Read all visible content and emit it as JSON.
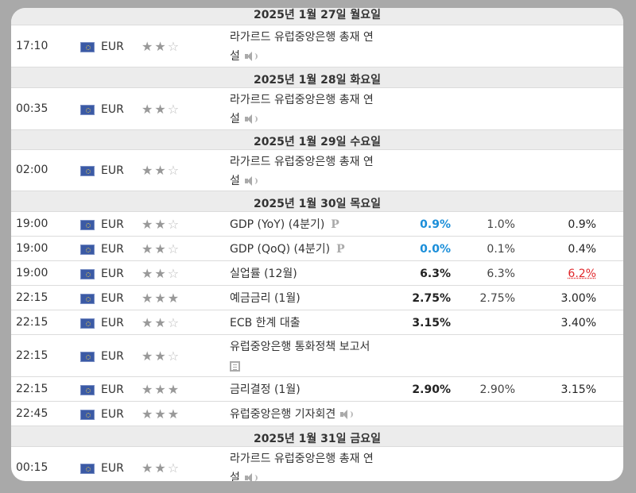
{
  "rows": [
    {
      "type": "day",
      "label": "2025년 1월 27일 월요일"
    },
    {
      "type": "event",
      "time": "17:10",
      "currency": "EUR",
      "stars": 2,
      "event": "라가르드 유럽중앙은행 총재 연",
      "event2": "설",
      "icon": "speaker-icon"
    },
    {
      "type": "day",
      "label": "2025년 1월 28일 화요일"
    },
    {
      "type": "event",
      "time": "00:35",
      "currency": "EUR",
      "stars": 2,
      "event": "라가르드 유럽중앙은행 총재 연",
      "event2": "설",
      "icon": "speaker-icon"
    },
    {
      "type": "day",
      "label": "2025년 1월 29일 수요일"
    },
    {
      "type": "event",
      "time": "02:00",
      "currency": "EUR",
      "stars": 2,
      "event": "라가르드 유럽중앙은행 총재 연",
      "event2": "설",
      "icon": "speaker-icon"
    },
    {
      "type": "day",
      "label": "2025년 1월 30일 목요일"
    },
    {
      "type": "event",
      "time": "19:00",
      "currency": "EUR",
      "stars": 2,
      "event": "GDP (YoY) (4분기)",
      "icon": "preliminary-icon",
      "actual": "0.9%",
      "actual_color": "blue",
      "forecast": "1.0%",
      "previous": "0.9%"
    },
    {
      "type": "event",
      "time": "19:00",
      "currency": "EUR",
      "stars": 2,
      "event": "GDP (QoQ) (4분기)",
      "icon": "preliminary-icon",
      "actual": "0.0%",
      "actual_color": "blue",
      "forecast": "0.1%",
      "previous": "0.4%"
    },
    {
      "type": "event",
      "time": "19:00",
      "currency": "EUR",
      "stars": 2,
      "event": "실업률 (12월)",
      "actual": "6.3%",
      "forecast": "6.3%",
      "previous": "6.2%",
      "previous_color": "red"
    },
    {
      "type": "event",
      "time": "22:15",
      "currency": "EUR",
      "stars": 3,
      "event": "예금금리 (1월)",
      "actual": "2.75%",
      "forecast": "2.75%",
      "previous": "3.00%"
    },
    {
      "type": "event",
      "time": "22:15",
      "currency": "EUR",
      "stars": 2,
      "event": "ECB 한계 대출",
      "actual": "3.15%",
      "forecast": "",
      "previous": "3.40%"
    },
    {
      "type": "event",
      "time": "22:15",
      "currency": "EUR",
      "stars": 2,
      "event": "유럽중앙은행 통화정책 보고서",
      "icon2": "report-icon"
    },
    {
      "type": "event",
      "time": "22:15",
      "currency": "EUR",
      "stars": 3,
      "event": "금리결정 (1월)",
      "actual": "2.90%",
      "forecast": "2.90%",
      "previous": "3.15%"
    },
    {
      "type": "event",
      "time": "22:45",
      "currency": "EUR",
      "stars": 3,
      "event": "유럽중앙은행 기자회견",
      "icon": "speaker-icon"
    },
    {
      "type": "day",
      "label": "2025년 1월 31일 금요일"
    },
    {
      "type": "event",
      "time": "00:15",
      "currency": "EUR",
      "stars": 2,
      "event": "라가르드 유럽중앙은행 총재 연",
      "event2": "설",
      "icon": "speaker-icon"
    }
  ]
}
